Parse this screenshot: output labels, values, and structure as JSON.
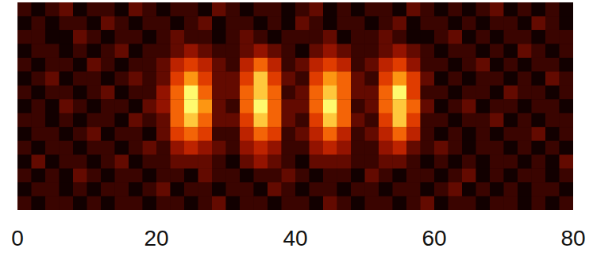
{
  "chart_data": {
    "type": "heatmap",
    "xlim": [
      0,
      80
    ],
    "xticks": [
      0,
      20,
      40,
      60,
      80
    ],
    "tick_labels": "x",
    "cells": [
      [
        1,
        0,
        1,
        2,
        0,
        1,
        1,
        0,
        2,
        1,
        0,
        1,
        1,
        0,
        2,
        1,
        0,
        1,
        1,
        0,
        1,
        2,
        0,
        1,
        0,
        1,
        1,
        0,
        2,
        1,
        0,
        1,
        0,
        1,
        2,
        0,
        1,
        0,
        1,
        0
      ],
      [
        0,
        1,
        0,
        1,
        1,
        0,
        2,
        1,
        0,
        1,
        1,
        0,
        1,
        2,
        0,
        1,
        1,
        0,
        1,
        0,
        2,
        1,
        0,
        1,
        1,
        0,
        1,
        2,
        0,
        1,
        1,
        0,
        1,
        0,
        1,
        1,
        0,
        2,
        1,
        0
      ],
      [
        1,
        1,
        0,
        0,
        2,
        1,
        0,
        1,
        1,
        0,
        1,
        2,
        1,
        1,
        0,
        1,
        2,
        1,
        0,
        1,
        1,
        1,
        2,
        0,
        1,
        1,
        2,
        1,
        0,
        0,
        1,
        2,
        0,
        1,
        0,
        1,
        1,
        0,
        1,
        1
      ],
      [
        0,
        1,
        1,
        0,
        1,
        0,
        1,
        2,
        0,
        1,
        1,
        2,
        3,
        2,
        1,
        1,
        2,
        3,
        2,
        1,
        0,
        2,
        3,
        2,
        1,
        1,
        2,
        3,
        2,
        1,
        0,
        1,
        1,
        0,
        1,
        0,
        2,
        1,
        0,
        1
      ],
      [
        1,
        0,
        1,
        1,
        0,
        2,
        1,
        0,
        1,
        1,
        2,
        4,
        5,
        4,
        2,
        1,
        4,
        6,
        4,
        1,
        2,
        4,
        5,
        4,
        1,
        2,
        4,
        5,
        3,
        1,
        1,
        0,
        1,
        2,
        0,
        1,
        0,
        1,
        1,
        0
      ],
      [
        0,
        1,
        2,
        0,
        1,
        1,
        0,
        1,
        2,
        1,
        2,
        5,
        7,
        5,
        2,
        2,
        5,
        8,
        5,
        2,
        1,
        5,
        7,
        6,
        2,
        1,
        5,
        7,
        5,
        2,
        0,
        1,
        0,
        1,
        1,
        0,
        1,
        0,
        2,
        1
      ],
      [
        1,
        0,
        1,
        1,
        0,
        1,
        2,
        0,
        1,
        1,
        3,
        6,
        9,
        6,
        2,
        2,
        6,
        8,
        6,
        1,
        2,
        6,
        8,
        6,
        2,
        2,
        6,
        9,
        5,
        1,
        1,
        0,
        1,
        1,
        0,
        2,
        1,
        1,
        0,
        1
      ],
      [
        0,
        1,
        0,
        2,
        1,
        0,
        1,
        1,
        0,
        2,
        3,
        6,
        9,
        7,
        2,
        1,
        6,
        9,
        6,
        2,
        2,
        6,
        9,
        6,
        1,
        2,
        6,
        8,
        6,
        2,
        0,
        1,
        2,
        0,
        1,
        1,
        0,
        1,
        1,
        0
      ],
      [
        1,
        1,
        0,
        1,
        0,
        1,
        1,
        0,
        2,
        1,
        2,
        6,
        8,
        6,
        2,
        2,
        5,
        8,
        6,
        2,
        1,
        5,
        8,
        6,
        2,
        1,
        5,
        8,
        5,
        1,
        1,
        0,
        1,
        1,
        2,
        0,
        1,
        0,
        1,
        1
      ],
      [
        0,
        1,
        1,
        0,
        1,
        2,
        0,
        1,
        1,
        0,
        2,
        5,
        6,
        5,
        1,
        1,
        4,
        6,
        5,
        1,
        2,
        4,
        6,
        4,
        1,
        2,
        4,
        6,
        4,
        1,
        0,
        1,
        0,
        1,
        0,
        1,
        1,
        2,
        0,
        1
      ],
      [
        1,
        0,
        1,
        1,
        0,
        1,
        1,
        0,
        1,
        2,
        1,
        3,
        4,
        3,
        2,
        1,
        3,
        4,
        3,
        1,
        1,
        3,
        4,
        3,
        1,
        1,
        3,
        4,
        2,
        1,
        2,
        1,
        0,
        1,
        1,
        0,
        1,
        0,
        1,
        0
      ],
      [
        0,
        2,
        0,
        1,
        1,
        0,
        1,
        2,
        0,
        1,
        1,
        2,
        2,
        2,
        1,
        0,
        2,
        3,
        2,
        1,
        0,
        2,
        2,
        2,
        1,
        1,
        2,
        2,
        1,
        0,
        1,
        0,
        1,
        0,
        1,
        1,
        0,
        1,
        0,
        2
      ],
      [
        1,
        0,
        1,
        0,
        2,
        1,
        0,
        1,
        1,
        0,
        1,
        1,
        0,
        2,
        1,
        1,
        0,
        1,
        1,
        2,
        1,
        0,
        1,
        1,
        0,
        2,
        1,
        0,
        1,
        1,
        0,
        1,
        2,
        0,
        1,
        0,
        1,
        1,
        0,
        1
      ],
      [
        0,
        1,
        1,
        0,
        1,
        0,
        1,
        1,
        0,
        1,
        2,
        0,
        1,
        1,
        0,
        1,
        1,
        0,
        2,
        1,
        0,
        1,
        1,
        0,
        1,
        1,
        0,
        1,
        1,
        0,
        1,
        2,
        0,
        1,
        0,
        1,
        0,
        1,
        1,
        0
      ],
      [
        1,
        0,
        1,
        1,
        0,
        1,
        0,
        1,
        1,
        0,
        1,
        1,
        0,
        1,
        2,
        0,
        1,
        1,
        0,
        1,
        1,
        0,
        2,
        1,
        0,
        1,
        1,
        0,
        1,
        2,
        0,
        1,
        1,
        0,
        1,
        1,
        0,
        1,
        0,
        1
      ]
    ]
  }
}
